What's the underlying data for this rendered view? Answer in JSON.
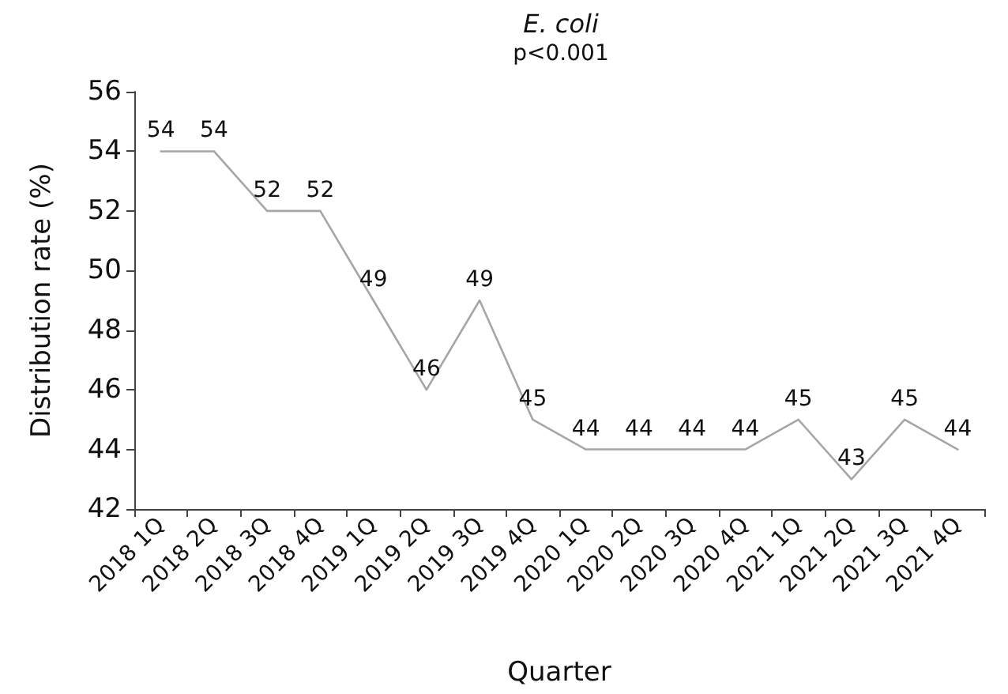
{
  "chart_data": {
    "type": "line",
    "title": "E. coli",
    "subtitle": "p<0.001",
    "xlabel": "Quarter",
    "ylabel": "Distribution rate (%)",
    "categories": [
      "2018 1Q",
      "2018 2Q",
      "2018 3Q",
      "2018 4Q",
      "2019 1Q",
      "2019 2Q",
      "2019 3Q",
      "2019 4Q",
      "2020 1Q",
      "2020 2Q",
      "2020 3Q",
      "2020 4Q",
      "2021 1Q",
      "2021 2Q",
      "2021 3Q",
      "2021 4Q"
    ],
    "series": [
      {
        "color": "#a6a6a6",
        "values": [
          54,
          54,
          52,
          52,
          49,
          46,
          49,
          45,
          44,
          44,
          44,
          44,
          45,
          43,
          45,
          44
        ]
      }
    ],
    "ylim": [
      42,
      56
    ],
    "yticks": [
      42,
      44,
      46,
      48,
      50,
      52,
      54,
      56
    ],
    "grid": false,
    "marker": "none",
    "line_style": "solid",
    "data_labels": true
  }
}
